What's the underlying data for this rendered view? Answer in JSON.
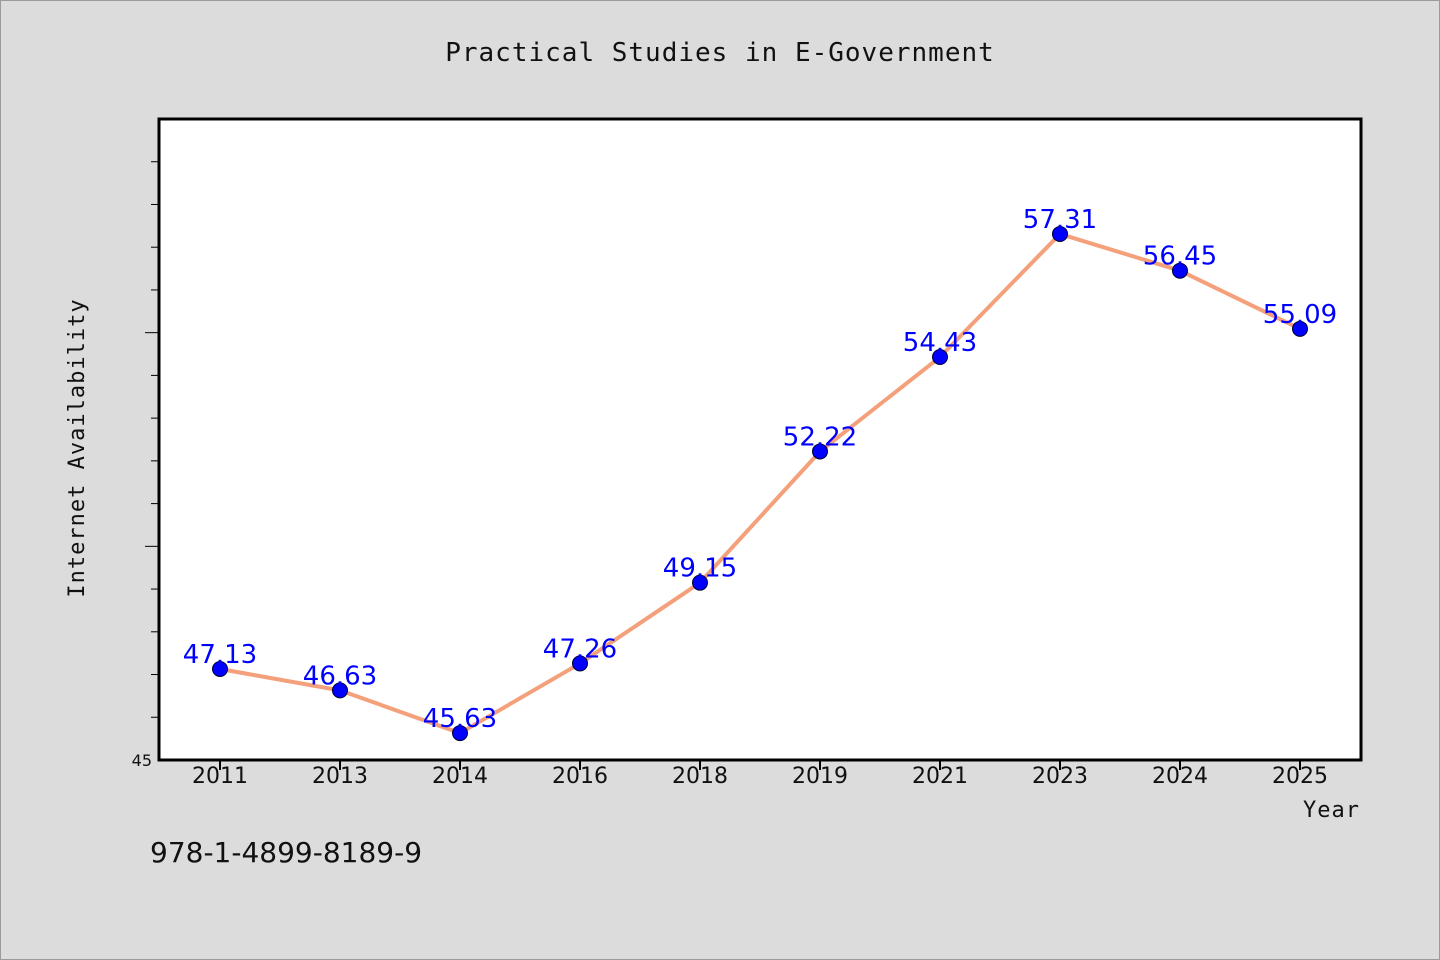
{
  "chart_data": {
    "type": "line",
    "title": "Practical Studies in E-Government",
    "xlabel": "Year",
    "ylabel": "Internet Availability",
    "categories": [
      "2011",
      "2013",
      "2014",
      "2016",
      "2018",
      "2019",
      "2021",
      "2023",
      "2024",
      "2025"
    ],
    "series": [
      {
        "values": [
          47.13,
          46.63,
          45.63,
          47.26,
          49.15,
          52.22,
          54.43,
          57.31,
          56.45,
          55.09
        ]
      }
    ],
    "data_labels": [
      "47.13",
      "46.63",
      "45.63",
      "47.26",
      "49.15",
      "52.22",
      "54.43",
      "57.31",
      "56.45",
      "55.09"
    ],
    "ylim": [
      45,
      60
    ],
    "y_min_label": "45",
    "grid": false,
    "colors": {
      "line": "#f4a07a",
      "marker": "#0000ff",
      "label": "#0000ff",
      "plot_bg": "#ffffff",
      "page_bg": "#dcdcdc"
    }
  },
  "footer": {
    "isbn": "978-1-4899-8189-9"
  }
}
